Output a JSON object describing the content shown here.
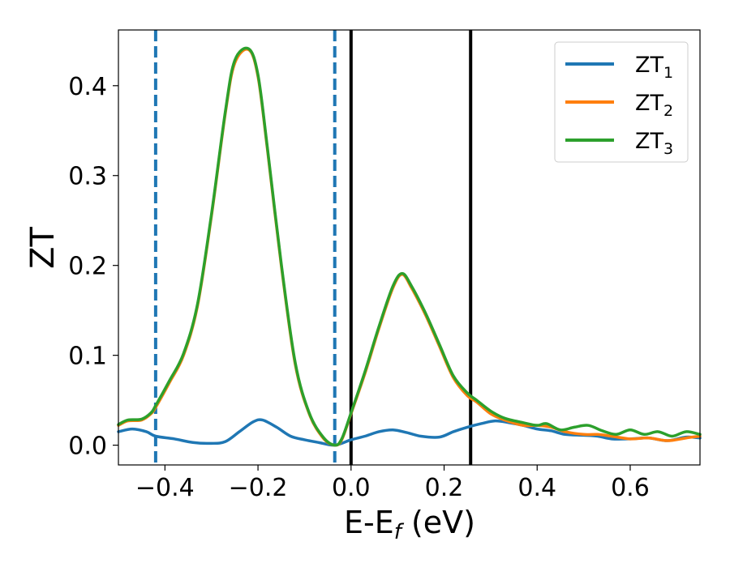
{
  "chart_data": {
    "type": "line",
    "title": "",
    "xlabel": "E-E",
    "xlabel_sub": "f",
    "xlabel_unit": " (eV)",
    "ylabel": "ZT",
    "xlim": [
      -0.5,
      0.75
    ],
    "ylim": [
      -0.022,
      0.462
    ],
    "grid": false,
    "legend_position": "top-right",
    "x_ticks": [
      -0.4,
      -0.2,
      0.0,
      0.2,
      0.4,
      0.6
    ],
    "x_tick_labels": [
      "−0.4",
      "−0.2",
      "0.0",
      "0.2",
      "0.4",
      "0.6"
    ],
    "y_ticks": [
      0.0,
      0.1,
      0.2,
      0.3,
      0.4
    ],
    "y_tick_labels": [
      "0.0",
      "0.1",
      "0.2",
      "0.3",
      "0.4"
    ],
    "vlines": [
      {
        "x": -0.42,
        "style": "dashed",
        "color": "#1f77b4"
      },
      {
        "x": -0.035,
        "style": "dashed",
        "color": "#1f77b4"
      },
      {
        "x": 0.0,
        "style": "solid",
        "color": "#000000"
      },
      {
        "x": 0.257,
        "style": "solid",
        "color": "#000000"
      }
    ],
    "series": [
      {
        "name": "ZT",
        "name_sub": "1",
        "color": "#1f77b4",
        "x": [
          -0.5,
          -0.47,
          -0.44,
          -0.42,
          -0.38,
          -0.34,
          -0.3,
          -0.27,
          -0.24,
          -0.21,
          -0.19,
          -0.16,
          -0.13,
          -0.1,
          -0.07,
          -0.035,
          0.0,
          0.03,
          0.06,
          0.09,
          0.12,
          0.15,
          0.19,
          0.22,
          0.25,
          0.28,
          0.31,
          0.34,
          0.37,
          0.4,
          0.43,
          0.46,
          0.5,
          0.53,
          0.56,
          0.6,
          0.64,
          0.68,
          0.72,
          0.75
        ],
        "y": [
          0.015,
          0.018,
          0.015,
          0.01,
          0.007,
          0.003,
          0.002,
          0.004,
          0.015,
          0.026,
          0.028,
          0.02,
          0.01,
          0.006,
          0.003,
          0.0,
          0.006,
          0.01,
          0.015,
          0.017,
          0.014,
          0.01,
          0.009,
          0.015,
          0.02,
          0.024,
          0.027,
          0.025,
          0.022,
          0.018,
          0.016,
          0.012,
          0.011,
          0.01,
          0.007,
          0.007,
          0.008,
          0.005,
          0.009,
          0.008
        ]
      },
      {
        "name": "ZT",
        "name_sub": "2",
        "color": "#ff7f0e",
        "x": [
          -0.5,
          -0.48,
          -0.45,
          -0.43,
          -0.42,
          -0.39,
          -0.36,
          -0.33,
          -0.3,
          -0.27,
          -0.25,
          -0.22,
          -0.2,
          -0.18,
          -0.15,
          -0.12,
          -0.09,
          -0.06,
          -0.035,
          -0.02,
          0.0,
          0.03,
          0.06,
          0.09,
          0.11,
          0.13,
          0.16,
          0.19,
          0.22,
          0.25,
          0.27,
          0.3,
          0.33,
          0.37,
          0.4,
          0.43,
          0.46,
          0.5,
          0.53,
          0.56,
          0.6,
          0.64,
          0.68,
          0.72,
          0.75
        ],
        "y": [
          0.022,
          0.027,
          0.028,
          0.035,
          0.042,
          0.07,
          0.1,
          0.155,
          0.255,
          0.37,
          0.425,
          0.44,
          0.41,
          0.33,
          0.2,
          0.09,
          0.035,
          0.008,
          0.0,
          0.006,
          0.035,
          0.08,
          0.13,
          0.175,
          0.19,
          0.175,
          0.145,
          0.11,
          0.075,
          0.055,
          0.048,
          0.035,
          0.028,
          0.022,
          0.022,
          0.02,
          0.015,
          0.012,
          0.012,
          0.01,
          0.007,
          0.008,
          0.005,
          0.008,
          0.01
        ]
      },
      {
        "name": "ZT",
        "name_sub": "3",
        "color": "#2ca02c",
        "x": [
          -0.5,
          -0.48,
          -0.45,
          -0.43,
          -0.42,
          -0.39,
          -0.36,
          -0.33,
          -0.3,
          -0.27,
          -0.25,
          -0.22,
          -0.2,
          -0.18,
          -0.15,
          -0.12,
          -0.09,
          -0.06,
          -0.035,
          -0.02,
          0.0,
          0.03,
          0.06,
          0.09,
          0.11,
          0.13,
          0.16,
          0.19,
          0.22,
          0.25,
          0.27,
          0.3,
          0.33,
          0.37,
          0.4,
          0.42,
          0.45,
          0.48,
          0.51,
          0.54,
          0.57,
          0.6,
          0.63,
          0.66,
          0.69,
          0.72,
          0.75
        ],
        "y": [
          0.023,
          0.028,
          0.029,
          0.036,
          0.044,
          0.072,
          0.102,
          0.157,
          0.257,
          0.372,
          0.428,
          0.441,
          0.412,
          0.332,
          0.202,
          0.092,
          0.036,
          0.009,
          0.0,
          0.007,
          0.036,
          0.082,
          0.132,
          0.177,
          0.191,
          0.177,
          0.147,
          0.112,
          0.077,
          0.058,
          0.05,
          0.038,
          0.03,
          0.025,
          0.022,
          0.024,
          0.017,
          0.02,
          0.022,
          0.016,
          0.012,
          0.017,
          0.012,
          0.015,
          0.01,
          0.015,
          0.012
        ]
      }
    ]
  }
}
